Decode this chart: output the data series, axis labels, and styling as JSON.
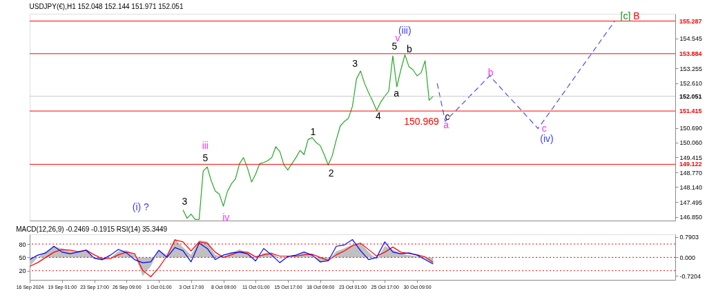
{
  "chart_data": [
    {
      "type": "line",
      "title": "USDJPY(€),H1  152.048 152.144 151.971 152.051",
      "ylim": [
        146.7,
        155.6
      ],
      "categories": [
        null,
        null,
        null,
        null,
        null,
        null,
        null,
        null,
        null,
        null,
        null,
        null,
        null,
        null,
        null,
        null,
        null,
        null,
        null,
        null,
        null,
        null,
        null,
        null,
        null,
        null,
        null,
        null,
        null,
        null,
        null,
        null,
        null,
        null,
        null,
        null,
        null,
        null,
        null,
        null,
        null,
        null,
        null,
        null,
        null,
        null,
        null,
        null,
        null,
        null,
        null,
        null,
        null,
        null,
        null,
        null,
        null,
        null,
        null,
        null,
        null,
        null,
        null,
        null,
        null,
        null,
        null,
        null,
        null,
        null,
        null,
        null,
        null,
        null,
        null,
        null,
        null,
        null,
        null,
        null,
        null,
        null,
        null,
        null,
        null,
        null,
        null,
        null,
        null,
        null,
        null,
        null,
        null,
        null,
        null,
        null,
        null,
        null,
        null,
        null,
        null,
        null,
        null,
        null,
        null,
        null,
        null,
        null,
        null,
        null,
        null,
        null,
        null,
        null,
        null,
        null,
        null,
        null,
        null,
        null,
        null,
        null,
        null,
        null,
        null,
        null,
        null,
        null,
        null,
        null,
        null,
        null,
        null,
        null,
        null,
        null,
        null,
        null,
        null,
        null,
        null,
        null,
        null,
        null,
        null,
        null,
        null,
        null,
        null,
        null,
        null,
        null,
        null,
        null,
        null,
        null,
        null,
        null,
        null,
        null,
        null
      ],
      "yticks": [
        154.545,
        153.255,
        {
          "value": 152.61,
          "label": "152.610"
        },
        {
          "value": 150.69,
          "label": "150.690"
        },
        {
          "value": 150.06,
          "label": "150.060"
        },
        149.415,
        {
          "value": 148.77,
          "label": "148.770"
        },
        {
          "value": 148.14,
          "label": "148.140"
        },
        147.495,
        {
          "value": 146.85,
          "label": "146.850"
        }
      ],
      "tick_labels": "y",
      "grid": false,
      "series": [
        {
          "color": "#22a822",
          "values": [
            null,
            null,
            null,
            null,
            null,
            null,
            null,
            null,
            null,
            null,
            null,
            null,
            null,
            null,
            null,
            null,
            null,
            null,
            null,
            null,
            null,
            null,
            null,
            null,
            null,
            null,
            null,
            null,
            null,
            null,
            null,
            null,
            null,
            null,
            null,
            null,
            null,
            null,
            147.16,
            146.8,
            146.98,
            146.75,
            146.75,
            148.83,
            149.01,
            148.41,
            147.97,
            147.84,
            147.32,
            147.95,
            148.28,
            148.49,
            149.15,
            149.41,
            148.95,
            148.36,
            148.7,
            149.15,
            149.2,
            149.28,
            149.41,
            149.88,
            149.67,
            149.1,
            148.88,
            149.15,
            149.41,
            149.72,
            149.54,
            150.19,
            150.27,
            150.06,
            149.93,
            149.54,
            149.09,
            149.5,
            150.19,
            150.78,
            150.97,
            151.1,
            151.62,
            152.8,
            153.14,
            152.6,
            152.2,
            151.85,
            151.44,
            151.8,
            152.05,
            152.27,
            153.79,
            152.46,
            153.19,
            153.84,
            153.32,
            153.19,
            152.93,
            153.06,
            153.58,
            151.88,
            152.05,
            null,
            null,
            null,
            null,
            null,
            null,
            null,
            null,
            null,
            null,
            null,
            null,
            null,
            null,
            null,
            null,
            null,
            null,
            null,
            null,
            null,
            null,
            null,
            null,
            null,
            null,
            null,
            null,
            null,
            null,
            null,
            null,
            null,
            null,
            null,
            null,
            null,
            null,
            null,
            null,
            null,
            null,
            null,
            null,
            null,
            null,
            null,
            null,
            null,
            null,
            null,
            null,
            null,
            null,
            null,
            null,
            null,
            null,
            null,
            null
          ]
        },
        {
          "color": "#4a4aff",
          "line_style": "dashed",
          "values": [
            null,
            null,
            null,
            null,
            null,
            null,
            null,
            null,
            null,
            null,
            null,
            null,
            null,
            null,
            null,
            null,
            null,
            null,
            null,
            null,
            null,
            null,
            null,
            null,
            null,
            null,
            null,
            null,
            null,
            null,
            null,
            null,
            null,
            null,
            null,
            null,
            null,
            null,
            null,
            null,
            null,
            null,
            null,
            null,
            null,
            null,
            null,
            null,
            null,
            null,
            null,
            null,
            null,
            null,
            null,
            null,
            null,
            null,
            null,
            null,
            null,
            null,
            null,
            null,
            null,
            null,
            null,
            null,
            null,
            null,
            null,
            null,
            null,
            null,
            null,
            null,
            null,
            null,
            null,
            null,
            null,
            null,
            null,
            null,
            null,
            null,
            null,
            null,
            null,
            null,
            null,
            null,
            null,
            null,
            null,
            null,
            null,
            null,
            null,
            null,
            null,
            152.61,
            151.79,
            150.97,
            151.15,
            151.33,
            151.5,
            151.68,
            151.86,
            152.04,
            152.22,
            152.39,
            152.57,
            152.75,
            152.93,
            152.74,
            152.55,
            152.36,
            152.17,
            151.98,
            151.8,
            151.61,
            151.42,
            151.23,
            151.04,
            150.85,
            150.66,
            150.9,
            151.15,
            151.39,
            151.63,
            151.87,
            152.12,
            152.36,
            152.61,
            152.85,
            153.1,
            153.34,
            153.58,
            153.82,
            154.07,
            154.31,
            154.56,
            154.8,
            155.04,
            155.29,
            null,
            null,
            null,
            null,
            null,
            null,
            null,
            null,
            null,
            null,
            null,
            null,
            null,
            null,
            null
          ]
        }
      ],
      "ref_lines": [
        {
          "axis": "y",
          "value": 155.287,
          "label": "155.287",
          "color": "#ff0000"
        },
        {
          "axis": "y",
          "value": 153.884,
          "label": "153.884",
          "color": "#ff0000"
        },
        {
          "axis": "y",
          "value": 152.051,
          "label": "152.051",
          "color": "#c8c8c8"
        },
        {
          "axis": "y",
          "value": 151.415,
          "label": "151.415",
          "color": "#ff0000"
        },
        {
          "axis": "y",
          "value": 149.122,
          "label": "149.122",
          "color": "#ff0000"
        }
      ],
      "annotations": [
        "(i) ?",
        "3",
        "iii",
        "5",
        "iv",
        "1",
        "2",
        "3",
        "4",
        "(iii)",
        "v",
        "5",
        "a",
        "b",
        "c",
        "a",
        "150.969",
        "b",
        "c",
        "(iv)",
        "[c]",
        "B"
      ]
    },
    {
      "type": "line",
      "title": "MACD(12,26,9) -0.2469 -0.1915 RSI(14) 35.3449",
      "categories": [
        "16 Sep 2024",
        null,
        null,
        null,
        "19 Sep 01:00",
        null,
        null,
        null,
        "23 Sep 17:00",
        null,
        null,
        null,
        "26 Sep 09:00",
        null,
        null,
        null,
        "1 Oct 01:00",
        null,
        null,
        null,
        "3 Oct 17:00",
        null,
        null,
        null,
        "8 Oct 09:00",
        null,
        null,
        null,
        "11 Oct 01:00",
        null,
        null,
        null,
        "15 Oct 17:00",
        null,
        null,
        null,
        "18 Oct 09:00",
        null,
        null,
        null,
        "23 Oct 01:00",
        null,
        null,
        null,
        "25 Oct 17:00",
        null,
        null,
        null,
        "30 Oct 09:00",
        null,
        null,
        null,
        null,
        null,
        null,
        null,
        null,
        null,
        null,
        null,
        null,
        null,
        null,
        null,
        null,
        null,
        null,
        null,
        null,
        null,
        null,
        null,
        null,
        null,
        null,
        null,
        null,
        null,
        null,
        null,
        null
      ],
      "ylim": [
        -0.6,
        101.7
      ],
      "yticks": [
        20,
        50,
        80
      ],
      "y2lim": [
        -0.87,
        0.89
      ],
      "y2ticks": [
        0.7903,
        {
          "value": 0,
          "label": "0.000"
        },
        -0.7204
      ],
      "grid": false,
      "series": [
        {
          "type": "area",
          "axis": "y2",
          "color": "#c0c0c0",
          "values": [
            -0.35,
            0.0,
            0.24,
            0.42,
            0.35,
            0.24,
            0.2,
            0.31,
            -0.05,
            -0.12,
            -0.02,
            0.24,
            0.28,
            0.13,
            -0.72,
            -0.35,
            0.28,
            0.1,
            0.72,
            0.39,
            0.1,
            0.66,
            0.62,
            0.1,
            0.02,
            0.17,
            0.31,
            0.17,
            -0.05,
            0.17,
            0.2,
            -0.05,
            0.02,
            0.06,
            0.17,
            0.1,
            -0.2,
            -0.12,
            0.24,
            0.35,
            0.5,
            0.55,
            0.22,
            -0.09,
            0.44,
            0.3,
            0.15,
            0.09,
            0.04,
            -0.05,
            -0.25,
            null,
            null,
            null,
            null,
            null,
            null,
            null,
            null,
            null,
            null,
            null,
            null,
            null,
            null,
            null,
            null,
            null,
            null,
            null,
            null,
            null,
            null,
            null,
            null,
            null,
            null,
            null,
            null,
            null,
            null
          ]
        },
        {
          "type": "line",
          "axis": "y2",
          "color": "#ff0000",
          "values": [
            -0.35,
            -0.2,
            0.0,
            0.2,
            0.3,
            0.28,
            0.22,
            0.28,
            0.1,
            -0.05,
            -0.05,
            0.1,
            0.2,
            0.15,
            -0.5,
            -0.75,
            -0.4,
            0.05,
            0.68,
            0.6,
            0.25,
            0.6,
            0.55,
            0.2,
            0.0,
            0.1,
            0.22,
            0.2,
            0.02,
            0.1,
            0.15,
            0.05,
            0.05,
            0.05,
            0.1,
            0.12,
            0.0,
            -0.12,
            0.1,
            0.25,
            0.45,
            0.55,
            0.3,
            0.05,
            0.2,
            0.4,
            0.2,
            0.15,
            0.1,
            0.02,
            -0.19,
            null,
            null,
            null,
            null,
            null,
            null,
            null,
            null,
            null,
            null,
            null,
            null,
            null,
            null,
            null,
            null,
            null,
            null,
            null,
            null,
            null,
            null,
            null,
            null,
            null,
            null,
            null,
            null,
            null,
            null
          ]
        },
        {
          "type": "line",
          "color": "#0000ff",
          "values": [
            45,
            55,
            60,
            75,
            62,
            58,
            62,
            66,
            48,
            45,
            55,
            68,
            60,
            45,
            38,
            40,
            66,
            50,
            72,
            65,
            40,
            82,
            70,
            45,
            55,
            60,
            62,
            58,
            42,
            70,
            55,
            38,
            52,
            55,
            62,
            55,
            40,
            42,
            75,
            78,
            90,
            65,
            45,
            50,
            85,
            62,
            58,
            60,
            55,
            45,
            35,
            null,
            null,
            null,
            null,
            null,
            null,
            null,
            null,
            null,
            null,
            null,
            null,
            null,
            null,
            null,
            null,
            null,
            null,
            null,
            null,
            null,
            null,
            null,
            null,
            null,
            null,
            null,
            null,
            null,
            null
          ]
        }
      ],
      "ref_lines": [
        {
          "axis": "y",
          "value": 80,
          "color": "#ff0000",
          "line_style": "dotted"
        },
        {
          "axis": "y",
          "value": 50,
          "color": "#ff0000",
          "line_style": "dotted"
        },
        {
          "axis": "y",
          "value": 20,
          "color": "#ff0000",
          "line_style": "dotted"
        }
      ]
    }
  ]
}
